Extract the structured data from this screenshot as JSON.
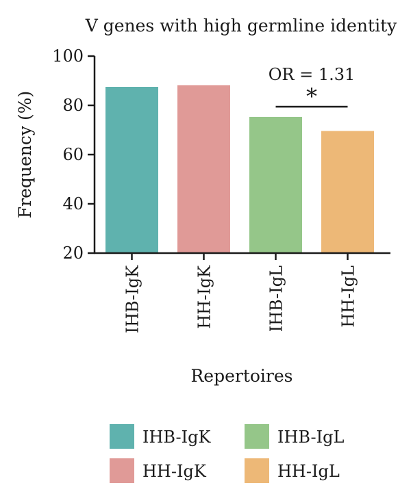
{
  "chart_data": {
    "type": "bar",
    "title": "V genes with high germline identity",
    "xlabel": "Repertoires",
    "ylabel": "Frequency (%)",
    "ylim": [
      20,
      100
    ],
    "yticks": [
      20,
      40,
      60,
      80,
      100
    ],
    "categories": [
      "IHB-IgK",
      "HH-IgK",
      "IHB-IgL",
      "HH-IgL"
    ],
    "values": [
      87.5,
      88.2,
      75.3,
      69.6
    ],
    "colors": [
      "#5FB2AE",
      "#E09A97",
      "#95C689",
      "#EDB877"
    ],
    "grid": false,
    "legend": {
      "placement": "bottom",
      "entries": [
        {
          "label": "IHB-IgK",
          "color": "#5FB2AE"
        },
        {
          "label": "IHB-IgL",
          "color": "#95C689"
        },
        {
          "label": "HH-IgK",
          "color": "#E09A97"
        },
        {
          "label": "HH-IgL",
          "color": "#EDB877"
        }
      ]
    },
    "annotation": {
      "text": "OR = 1.31",
      "significance": "*",
      "between": [
        "IHB-IgL",
        "HH-IgL"
      ]
    }
  }
}
